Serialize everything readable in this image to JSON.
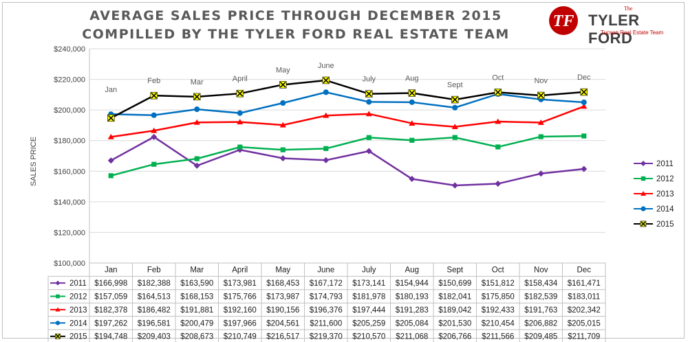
{
  "titles": {
    "line1": "AVERAGE SALES PRICE THROUGH DECEMBER 2015",
    "line2": "COMPILLED BY THE TYLER FORD REAL ESTATE TEAM"
  },
  "logo": {
    "the": "The",
    "name": "TYLER FORD",
    "subtitle": "Tucson Real Estate Team",
    "monogram": "TF"
  },
  "chart_data": {
    "type": "line",
    "title": "AVERAGE SALES PRICE THROUGH DECEMBER 2015",
    "subtitle": "COMPILLED BY THE TYLER FORD REAL ESTATE TEAM",
    "xlabel": "",
    "ylabel": "SALES PRICE",
    "ylim": [
      100000,
      240000
    ],
    "yticks": [
      100000,
      120000,
      140000,
      160000,
      180000,
      200000,
      220000,
      240000
    ],
    "ytick_labels": [
      "$100,000",
      "$120,000",
      "$140,000",
      "$160,000",
      "$180,000",
      "$200,000",
      "$220,000",
      "$240,000"
    ],
    "grid": true,
    "legend_position": "right",
    "categories": [
      "Jan",
      "Feb",
      "Mar",
      "April",
      "May",
      "June",
      "July",
      "Aug",
      "Sept",
      "Oct",
      "Nov",
      "Dec"
    ],
    "annotations": [
      "Jan",
      "Feb",
      "Mar",
      "April",
      "May",
      "June",
      "July",
      "Aug",
      "Sept",
      "Oct",
      "Nov",
      "Dec"
    ],
    "series": [
      {
        "name": "2011",
        "color": "#7030a0",
        "marker": "diamond",
        "values": [
          166998,
          182388,
          163590,
          173981,
          168453,
          167172,
          173141,
          154944,
          150699,
          151812,
          158434,
          161471
        ],
        "labels": [
          "$166,998",
          "$182,388",
          "$163,590",
          "$173,981",
          "$168,453",
          "$167,172",
          "$173,141",
          "$154,944",
          "$150,699",
          "$151,812",
          "$158,434",
          "$161,471"
        ]
      },
      {
        "name": "2012",
        "color": "#00b050",
        "marker": "square",
        "values": [
          157059,
          164513,
          168153,
          175766,
          173987,
          174793,
          181978,
          180193,
          182041,
          175850,
          182539,
          183011
        ],
        "labels": [
          "$157,059",
          "$164,513",
          "$168,153",
          "$175,766",
          "$173,987",
          "$174,793",
          "$181,978",
          "$180,193",
          "$182,041",
          "$175,850",
          "$182,539",
          "$183,011"
        ]
      },
      {
        "name": "2013",
        "color": "#ff0000",
        "marker": "triangle",
        "values": [
          182378,
          186482,
          191881,
          192160,
          190156,
          196376,
          197444,
          191283,
          189042,
          192433,
          191763,
          202342
        ],
        "labels": [
          "$182,378",
          "$186,482",
          "$191,881",
          "$192,160",
          "$190,156",
          "$196,376",
          "$197,444",
          "$191,283",
          "$189,042",
          "$192,433",
          "$191,763",
          "$202,342"
        ]
      },
      {
        "name": "2014",
        "color": "#0070c0",
        "marker": "circle",
        "values": [
          197262,
          196581,
          200479,
          197966,
          204561,
          211600,
          205259,
          205084,
          201530,
          210454,
          206882,
          205015
        ],
        "labels": [
          "$197,262",
          "$196,581",
          "$200,479",
          "$197,966",
          "$204,561",
          "$211,600",
          "$205,259",
          "$205,084",
          "$201,530",
          "$210,454",
          "$206,882",
          "$205,015"
        ]
      },
      {
        "name": "2015",
        "color": "#000000",
        "marker": "x-yellow",
        "values": [
          194748,
          209403,
          208673,
          210749,
          216517,
          219370,
          210570,
          211068,
          206766,
          211566,
          209485,
          211709
        ],
        "labels": [
          "$194,748",
          "$209,403",
          "$208,673",
          "$210,749",
          "$216,517",
          "$219,370",
          "$210,570",
          "$211,068",
          "$206,766",
          "$211,566",
          "$209,485",
          "$211,709"
        ]
      }
    ]
  }
}
